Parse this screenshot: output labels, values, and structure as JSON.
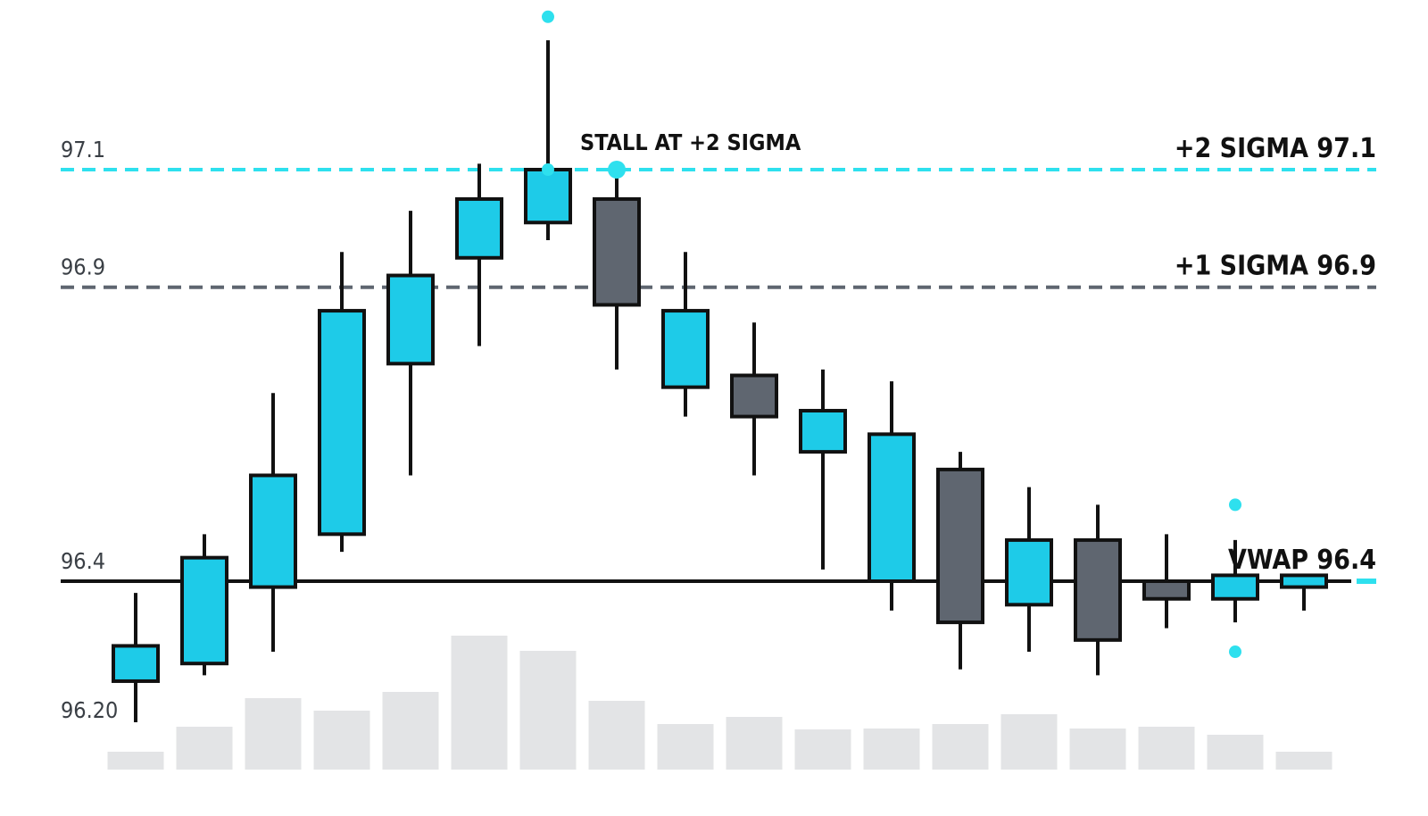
{
  "chart_data": {
    "type": "candlestick",
    "y_ticks": [
      {
        "value": 97.1,
        "label": "97.1"
      },
      {
        "value": 96.9,
        "label": "96.9"
      },
      {
        "value": 96.4,
        "label": "96.4"
      },
      {
        "value": 96.2,
        "label": "96.20"
      }
    ],
    "reference_lines": [
      {
        "name": "plus2",
        "value": 97.1,
        "label": "+2 SIGMA 97.1",
        "color": "#2ee0ee",
        "style": "dashed"
      },
      {
        "name": "plus1",
        "value": 96.9,
        "label": "+1 SIGMA 96.9",
        "color": "#5f6670",
        "style": "dashed"
      },
      {
        "name": "vwap",
        "value": 96.4,
        "label": "VWAP 96.4",
        "color": "#111111",
        "style": "solid"
      }
    ],
    "annotation": {
      "text": "STALL AT +2 SIGMA"
    },
    "colors": {
      "up": "#1ecbe8",
      "down": "#5f6670",
      "volume": "#e3e4e6",
      "outline": "#111111",
      "marker": "#2ee0ee"
    },
    "candles": [
      {
        "open": 96.23,
        "high": 96.38,
        "low": 96.16,
        "close": 96.29
      },
      {
        "open": 96.26,
        "high": 96.48,
        "low": 96.24,
        "close": 96.44
      },
      {
        "open": 96.39,
        "high": 96.72,
        "low": 96.28,
        "close": 96.58
      },
      {
        "open": 96.48,
        "high": 96.96,
        "low": 96.45,
        "close": 96.86
      },
      {
        "open": 96.77,
        "high": 97.03,
        "low": 96.58,
        "close": 96.92
      },
      {
        "open": 96.95,
        "high": 97.11,
        "low": 96.8,
        "close": 97.05
      },
      {
        "open": 97.01,
        "high": 97.32,
        "low": 96.98,
        "close": 97.1
      },
      {
        "open": 97.05,
        "high": 97.1,
        "low": 96.76,
        "close": 96.87
      },
      {
        "open": 96.73,
        "high": 96.96,
        "low": 96.68,
        "close": 96.86
      },
      {
        "open": 96.75,
        "high": 96.84,
        "low": 96.58,
        "close": 96.68
      },
      {
        "open": 96.62,
        "high": 96.76,
        "low": 96.42,
        "close": 96.69
      },
      {
        "open": 96.4,
        "high": 96.74,
        "low": 96.35,
        "close": 96.65
      },
      {
        "open": 96.59,
        "high": 96.62,
        "low": 96.25,
        "close": 96.33
      },
      {
        "open": 96.36,
        "high": 96.56,
        "low": 96.28,
        "close": 96.47
      },
      {
        "open": 96.47,
        "high": 96.53,
        "low": 96.24,
        "close": 96.3
      },
      {
        "open": 96.4,
        "high": 96.48,
        "low": 96.32,
        "close": 96.37
      },
      {
        "open": 96.37,
        "high": 96.47,
        "low": 96.33,
        "close": 96.41
      },
      {
        "open": 96.39,
        "high": 96.41,
        "low": 96.35,
        "close": 96.41
      }
    ],
    "volume": [
      20,
      48,
      80,
      66,
      87,
      150,
      133,
      77,
      51,
      59,
      45,
      46,
      51,
      62,
      46,
      48,
      39,
      20
    ],
    "markers": [
      {
        "candle": 6,
        "value": 97.36
      },
      {
        "candle": 6,
        "value": 97.1
      },
      {
        "candle": 7,
        "value": 97.1
      },
      {
        "candle": 16,
        "value": 96.53
      },
      {
        "candle": 16,
        "value": 96.28
      }
    ]
  }
}
